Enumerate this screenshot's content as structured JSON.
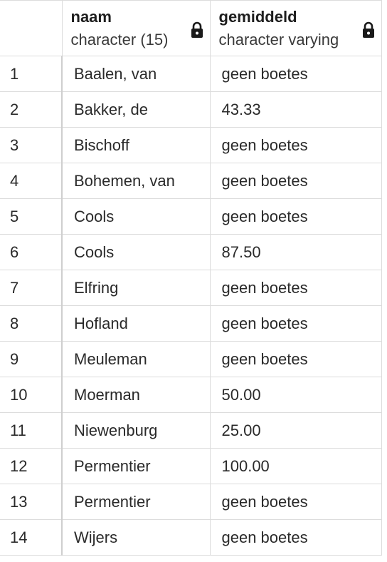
{
  "columns": [
    {
      "name": "naam",
      "type": "character (15)",
      "lock_icon": "lock-icon"
    },
    {
      "name": "gemiddeld",
      "type": "character varying",
      "lock_icon": "lock-icon"
    }
  ],
  "rows": [
    {
      "index": "1",
      "naam": "Baalen, van",
      "gemiddeld": "geen boetes"
    },
    {
      "index": "2",
      "naam": "Bakker, de",
      "gemiddeld": "43.33"
    },
    {
      "index": "3",
      "naam": "Bischoff",
      "gemiddeld": "geen boetes"
    },
    {
      "index": "4",
      "naam": "Bohemen, van",
      "gemiddeld": "geen boetes"
    },
    {
      "index": "5",
      "naam": "Cools",
      "gemiddeld": "geen boetes"
    },
    {
      "index": "6",
      "naam": "Cools",
      "gemiddeld": "87.50"
    },
    {
      "index": "7",
      "naam": "Elfring",
      "gemiddeld": "geen boetes"
    },
    {
      "index": "8",
      "naam": "Hofland",
      "gemiddeld": "geen boetes"
    },
    {
      "index": "9",
      "naam": "Meuleman",
      "gemiddeld": "geen boetes"
    },
    {
      "index": "10",
      "naam": "Moerman",
      "gemiddeld": "50.00"
    },
    {
      "index": "11",
      "naam": "Niewenburg",
      "gemiddeld": "25.00"
    },
    {
      "index": "12",
      "naam": "Permentier",
      "gemiddeld": "100.00"
    },
    {
      "index": "13",
      "naam": "Permentier",
      "gemiddeld": "geen boetes"
    },
    {
      "index": "14",
      "naam": "Wijers",
      "gemiddeld": "geen boetes"
    }
  ]
}
